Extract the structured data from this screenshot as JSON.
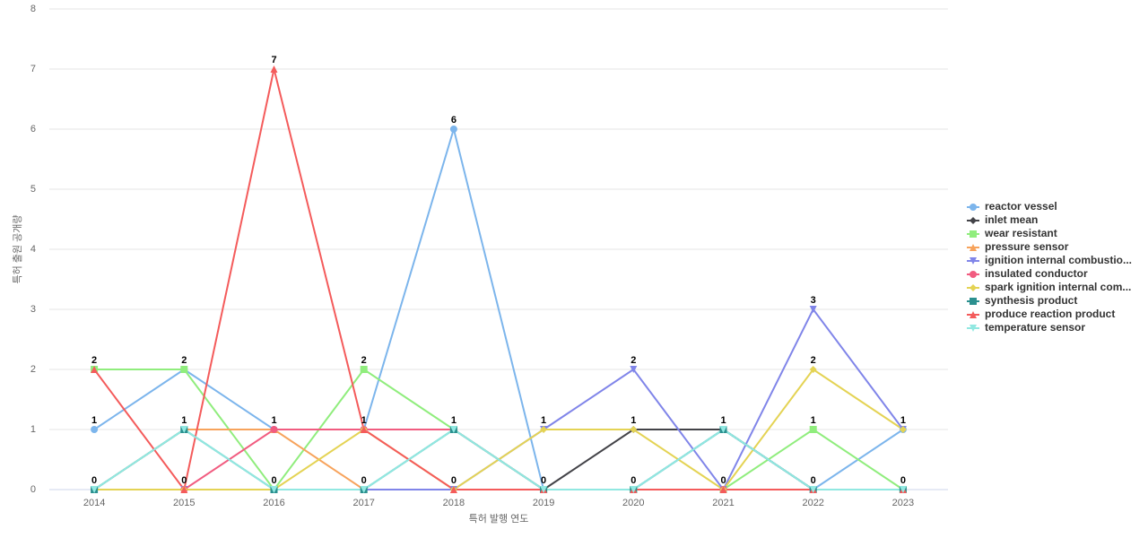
{
  "chart_data": {
    "type": "line",
    "x_label": "특허 발행 연도",
    "y_label": "특허 출원 공개량",
    "categories": [
      "2014",
      "2015",
      "2016",
      "2017",
      "2018",
      "2019",
      "2020",
      "2021",
      "2022",
      "2023"
    ],
    "ylim": [
      0,
      8
    ],
    "yticks": [
      0,
      1,
      2,
      3,
      4,
      5,
      6,
      7,
      8
    ],
    "grid": true,
    "legend": "right",
    "series": [
      {
        "name": "reactor vessel",
        "color": "#7cb5ec",
        "marker": "circle",
        "values": [
          1,
          2,
          1,
          1,
          6,
          0,
          0,
          1,
          0,
          1
        ]
      },
      {
        "name": "inlet mean",
        "color": "#434348",
        "marker": "diamond",
        "values": [
          0,
          0,
          0,
          0,
          0,
          0,
          1,
          1,
          0,
          0
        ]
      },
      {
        "name": "wear resistant",
        "color": "#90ed7d",
        "marker": "square",
        "values": [
          2,
          2,
          0,
          2,
          1,
          0,
          0,
          0,
          1,
          0
        ]
      },
      {
        "name": "pressure sensor",
        "color": "#f7a35c",
        "marker": "triangle",
        "values": [
          0,
          1,
          1,
          0,
          0,
          0,
          0,
          0,
          0,
          0
        ]
      },
      {
        "name": "ignition internal combustio...",
        "color": "#8085e9",
        "marker": "triangle-down",
        "values": [
          0,
          0,
          0,
          0,
          0,
          1,
          2,
          0,
          3,
          1
        ]
      },
      {
        "name": "insulated conductor",
        "color": "#f15c80",
        "marker": "circle",
        "values": [
          0,
          0,
          1,
          1,
          1,
          0,
          0,
          0,
          0,
          0
        ]
      },
      {
        "name": "spark ignition internal com...",
        "color": "#e4d354",
        "marker": "diamond",
        "values": [
          0,
          0,
          0,
          1,
          0,
          1,
          1,
          0,
          2,
          1
        ]
      },
      {
        "name": "synthesis product",
        "color": "#2b908f",
        "marker": "square",
        "values": [
          0,
          1,
          0,
          0,
          1,
          0,
          0,
          1,
          0,
          0
        ]
      },
      {
        "name": "produce reaction product",
        "color": "#f45b5b",
        "marker": "triangle",
        "values": [
          2,
          0,
          7,
          1,
          0,
          0,
          0,
          0,
          0,
          0
        ]
      },
      {
        "name": "temperature sensor",
        "color": "#91e8e1",
        "marker": "triangle-down",
        "values": [
          0,
          1,
          0,
          0,
          1,
          0,
          0,
          1,
          0,
          0
        ]
      }
    ]
  }
}
